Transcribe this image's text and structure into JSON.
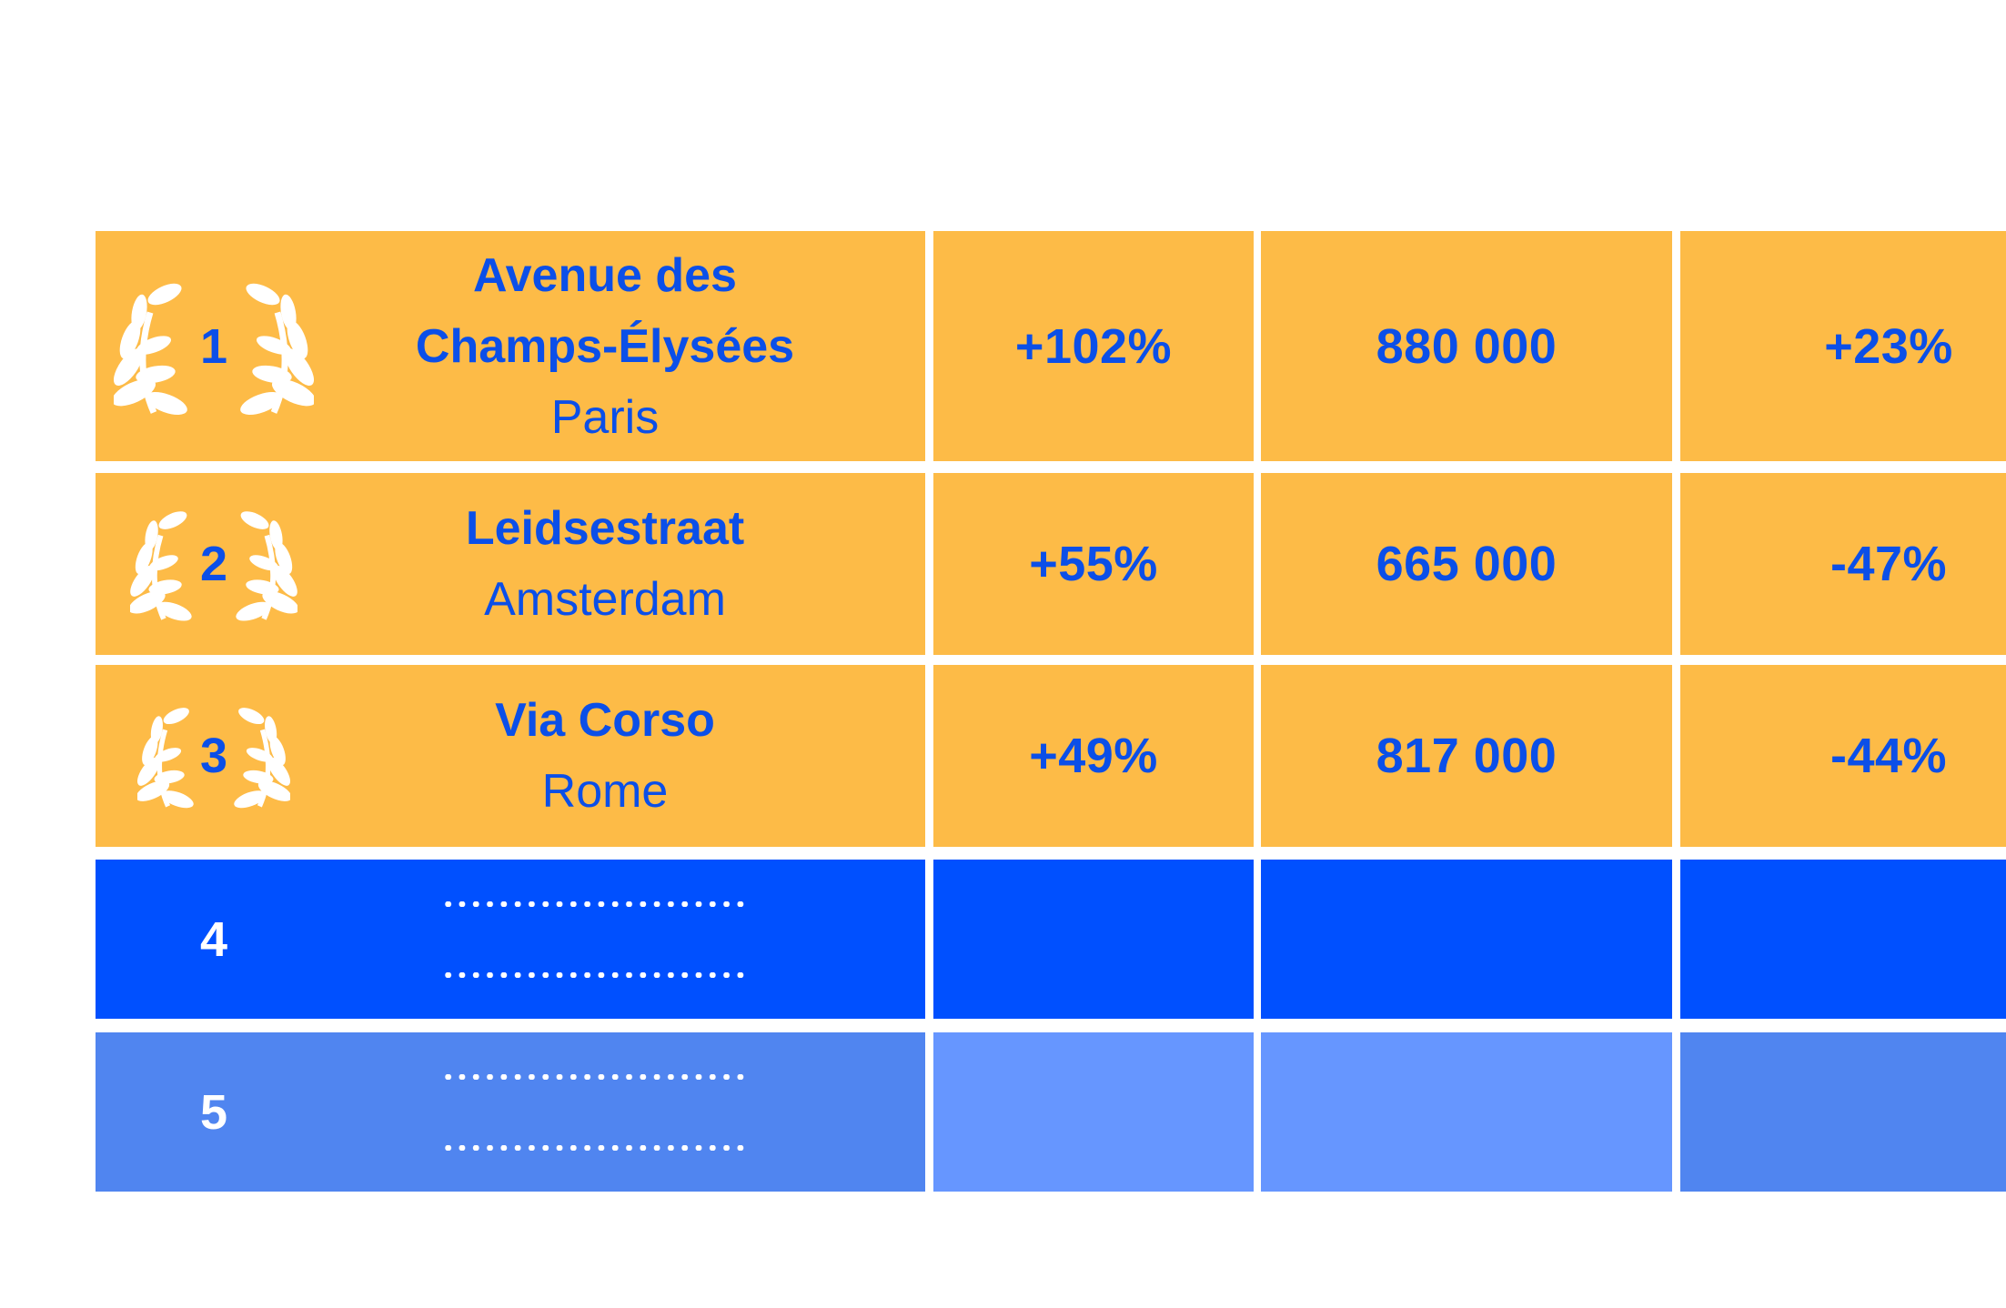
{
  "colors": {
    "gold": "#fdbb47",
    "blue_dark": "#0050ff",
    "blue_mid": "#5085f0",
    "blue_light": "#6696ff",
    "text_blue": "#0b4fe8",
    "white": "#ffffff"
  },
  "icons": {
    "laurel": "laurel-wreath-icon"
  },
  "rows": [
    {
      "rank": "1",
      "street": [
        "Avenue des",
        "Champs-Élysées"
      ],
      "city": "Paris",
      "metric_a": "+102%",
      "metric_b": "880 000",
      "metric_c": "+23%"
    },
    {
      "rank": "2",
      "street": [
        "Leidsestraat"
      ],
      "city": "Amsterdam",
      "metric_a": "+55%",
      "metric_b": "665 000",
      "metric_c": "-47%"
    },
    {
      "rank": "3",
      "street": [
        "Via Corso"
      ],
      "city": "Rome",
      "metric_a": "+49%",
      "metric_b": "817 000",
      "metric_c": "-44%"
    },
    {
      "rank": "4",
      "street": [],
      "city": "",
      "metric_a": "",
      "metric_b": "",
      "metric_c": ""
    },
    {
      "rank": "5",
      "street": [],
      "city": "",
      "metric_a": "",
      "metric_b": "",
      "metric_c": ""
    }
  ]
}
